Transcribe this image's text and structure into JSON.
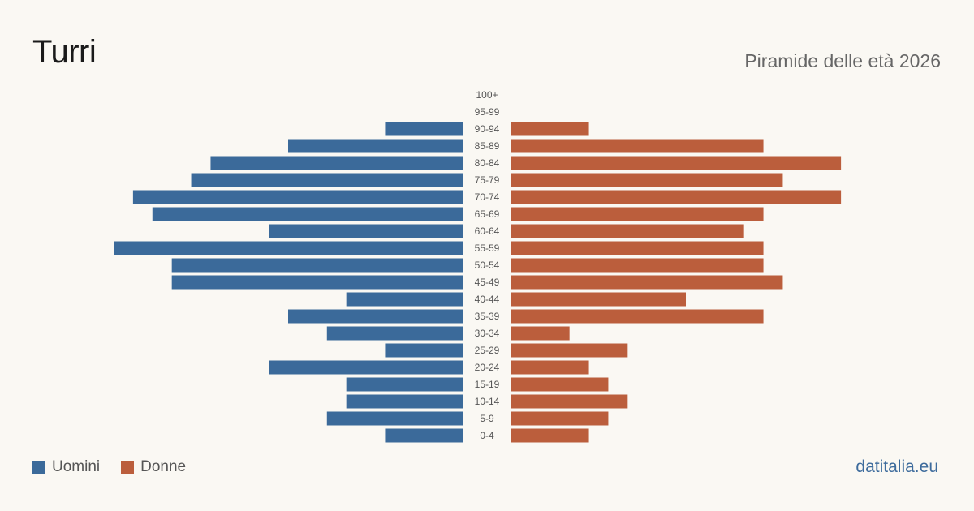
{
  "header": {
    "title": "Turri",
    "subtitle": "Piramide delle età 2026"
  },
  "legend": {
    "men_label": "Uomini",
    "women_label": "Donne"
  },
  "footer": {
    "site": "datitalia.eu"
  },
  "colors": {
    "men": "#3b6a9a",
    "women": "#bb5e3c"
  },
  "chart_data": {
    "type": "bar",
    "orientation": "horizontal-pyramid",
    "categories": [
      "100+",
      "95-99",
      "90-94",
      "85-89",
      "80-84",
      "75-79",
      "70-74",
      "65-69",
      "60-64",
      "55-59",
      "50-54",
      "45-49",
      "40-44",
      "35-39",
      "30-34",
      "25-29",
      "20-24",
      "15-19",
      "10-14",
      "5-9",
      "0-4"
    ],
    "series": [
      {
        "name": "Uomini",
        "values": [
          0,
          0,
          4,
          9,
          13,
          14,
          17,
          16,
          10,
          18,
          15,
          15,
          6,
          9,
          7,
          4,
          10,
          6,
          6,
          7,
          4
        ]
      },
      {
        "name": "Donne",
        "values": [
          0,
          0,
          4,
          13,
          17,
          14,
          17,
          13,
          12,
          13,
          13,
          14,
          9,
          13,
          3,
          6,
          4,
          5,
          6,
          5,
          4
        ]
      }
    ],
    "xlim": [
      0,
      18
    ]
  }
}
